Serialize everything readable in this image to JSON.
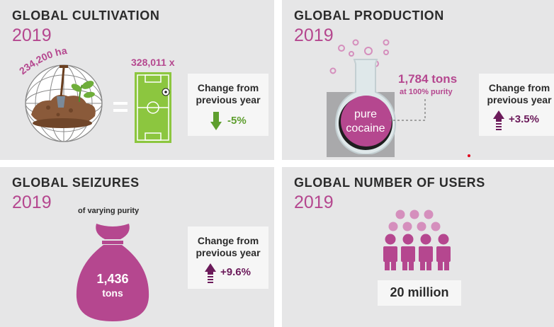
{
  "cultivation": {
    "title": "GLOBAL CULTIVATION",
    "year": "2019",
    "area": "234,200 ha",
    "football_fields": "328,011 x",
    "change_label_line1": "Change from",
    "change_label_line2": "previous year",
    "change_value": "-5%",
    "change_direction": "down",
    "change_color": "#5e9e2e"
  },
  "production": {
    "title": "GLOBAL PRODUCTION",
    "year": "2019",
    "amount": "1,784 tons",
    "purity": "at 100% purity",
    "flask_label_line1": "pure",
    "flask_label_line2": "cocaine",
    "change_label_line1": "Change from",
    "change_label_line2": "previous year",
    "change_value": "+3.5%",
    "change_direction": "up",
    "change_color": "#6b1a5a"
  },
  "seizures": {
    "title": "GLOBAL SEIZURES",
    "year": "2019",
    "note": "of varying purity",
    "amount_value": "1,436",
    "amount_unit": "tons",
    "change_label_line1": "Change from",
    "change_label_line2": "previous year",
    "change_value": "+9.6%",
    "change_direction": "up",
    "change_color": "#6b1a5a"
  },
  "users": {
    "title": "GLOBAL NUMBER OF USERS",
    "year": "2019",
    "count": "20 million"
  },
  "colors": {
    "accent": "#b5478f",
    "panel": "#e6e6e7",
    "field_green": "#8cc63f"
  }
}
